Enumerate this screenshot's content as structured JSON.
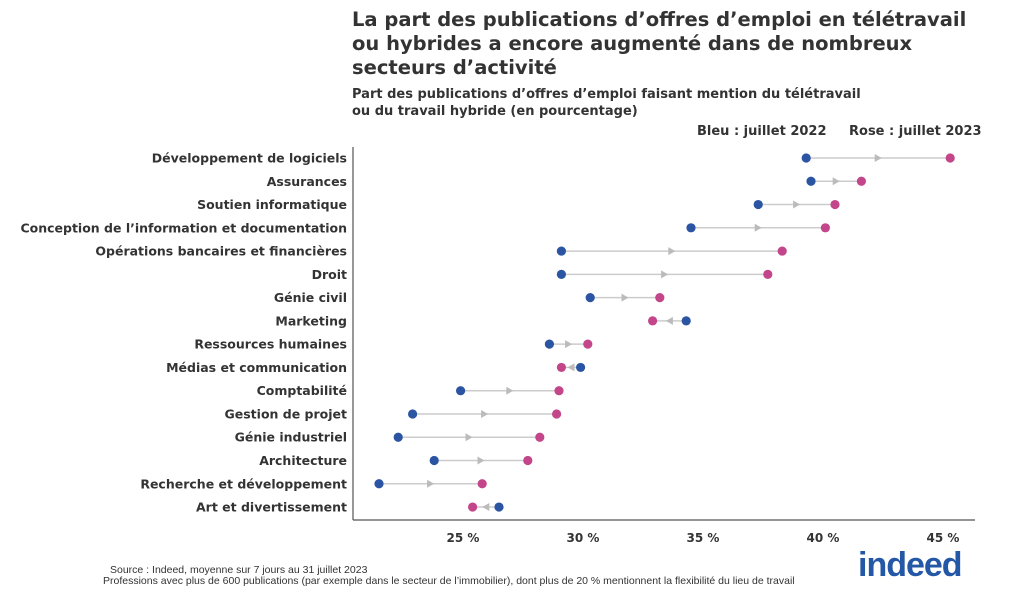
{
  "title": "La part des publications d’offres d’emploi en télétravail ou hybrides a encore augmenté dans de nombreux secteurs d’activité",
  "subtitle_line1": "Part des publications d’offres d’emploi faisant mention du télétravail",
  "subtitle_line2": "ou du travail hybride (en pourcentage)",
  "legend": {
    "blue": "Bleu : juillet 2022",
    "pink": "Rose : juillet 2023"
  },
  "source_line1": "Source : Indeed, moyenne sur 7 jours au 31 juillet 2023",
  "source_line2": "Professions avec plus de 600 publications (par exemple dans le secteur de l’immobilier), dont plus de 20 % mentionnent la flexibilité du lieu de travail",
  "logo_text": "indeed",
  "colors": {
    "july_2022": "#2b55a3",
    "july_2023": "#c4468a",
    "connector": "#cccccc",
    "arrow": "#bbbbbb"
  },
  "chart_data": {
    "type": "dumbbell",
    "xlim": [
      20.9,
      46.4
    ],
    "xticks": [
      25,
      30,
      35,
      40,
      45
    ],
    "xtick_labels": [
      "25 %",
      "30 %",
      "35 %",
      "40 %",
      "45 %"
    ],
    "grid": false,
    "categories": [
      "Développement de logiciels",
      "Assurances",
      "Soutien informatique",
      "Conception de l’information et documentation",
      "Opérations bancaires et financières",
      "Droit",
      "Génie civil",
      "Marketing",
      "Ressources humaines",
      "Médias et communication",
      "Comptabilité",
      "Gestion de projet",
      "Génie industriel",
      "Architecture",
      "Recherche et développement",
      "Art et divertissement"
    ],
    "series": [
      {
        "name": "Bleu : juillet 2022",
        "values": [
          39.3,
          39.5,
          37.3,
          34.5,
          29.1,
          29.1,
          30.3,
          34.3,
          28.6,
          29.9,
          24.9,
          22.9,
          22.3,
          23.8,
          21.5,
          26.5
        ]
      },
      {
        "name": "Rose : juillet 2023",
        "values": [
          45.3,
          41.6,
          40.5,
          40.1,
          38.3,
          37.7,
          33.2,
          32.9,
          30.2,
          29.1,
          29.0,
          28.9,
          28.2,
          27.7,
          25.8,
          25.4
        ]
      }
    ]
  }
}
